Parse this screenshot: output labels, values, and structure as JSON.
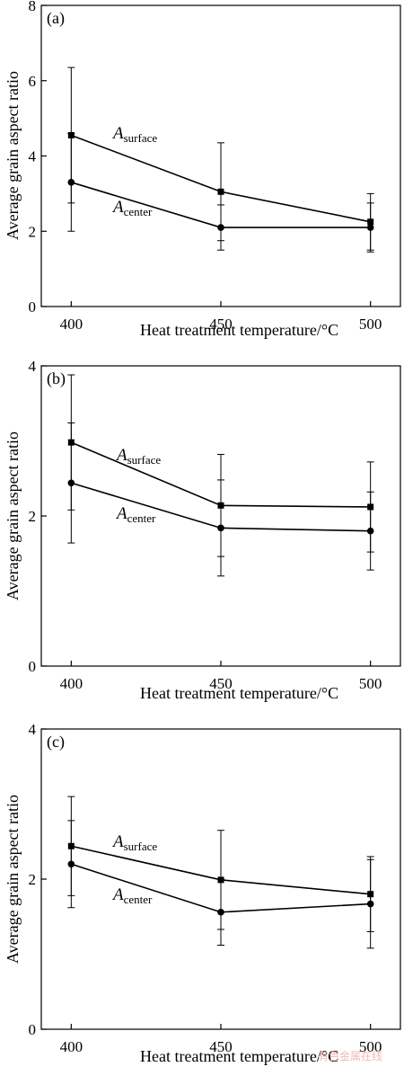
{
  "chart_data": [
    {
      "type": "line",
      "panel_label": "(a)",
      "xlabel": "Heat treatment temperature/°C",
      "ylabel": "Average grain aspect ratio",
      "categories": [
        400,
        450,
        500
      ],
      "xlim": [
        390,
        510
      ],
      "ylim": [
        0,
        8
      ],
      "yticks": [
        0,
        2,
        4,
        6,
        8
      ],
      "series": [
        {
          "name_main": "A",
          "name_sub": "surface",
          "marker": "square",
          "values": [
            4.55,
            3.05,
            2.25
          ],
          "err_low": [
            1.8,
            1.3,
            0.75
          ],
          "err_high": [
            1.8,
            1.3,
            0.75
          ]
        },
        {
          "name_main": "A",
          "name_sub": "center",
          "marker": "circle",
          "values": [
            3.3,
            2.1,
            2.1
          ],
          "err_low": [
            1.3,
            0.6,
            0.65
          ],
          "err_high": [
            1.3,
            0.6,
            0.65
          ]
        }
      ]
    },
    {
      "type": "line",
      "panel_label": "(b)",
      "xlabel": "Heat treatment temperature/°C",
      "ylabel": "Average grain aspect ratio",
      "categories": [
        400,
        450,
        500
      ],
      "xlim": [
        390,
        510
      ],
      "ylim": [
        0,
        4
      ],
      "yticks": [
        0,
        2,
        4
      ],
      "series": [
        {
          "name_main": "A",
          "name_sub": "surface",
          "marker": "square",
          "values": [
            2.98,
            2.14,
            2.12
          ],
          "err_low": [
            0.9,
            0.68,
            0.6
          ],
          "err_high": [
            0.9,
            0.68,
            0.6
          ]
        },
        {
          "name_main": "A",
          "name_sub": "center",
          "marker": "circle",
          "values": [
            2.44,
            1.84,
            1.8
          ],
          "err_low": [
            0.8,
            0.64,
            0.52
          ],
          "err_high": [
            0.8,
            0.64,
            0.52
          ]
        }
      ]
    },
    {
      "type": "line",
      "panel_label": "(c)",
      "xlabel": "Heat treatment temperature/°C",
      "ylabel": "Average grain aspect ratio",
      "categories": [
        400,
        450,
        500
      ],
      "xlim": [
        390,
        510
      ],
      "ylim": [
        0,
        4
      ],
      "yticks": [
        0,
        2,
        4
      ],
      "series": [
        {
          "name_main": "A",
          "name_sub": "surface",
          "marker": "square",
          "values": [
            2.44,
            1.99,
            1.8
          ],
          "err_low": [
            0.66,
            0.66,
            0.5
          ],
          "err_high": [
            0.66,
            0.66,
            0.5
          ]
        },
        {
          "name_main": "A",
          "name_sub": "center",
          "marker": "circle",
          "values": [
            2.2,
            1.56,
            1.67
          ],
          "err_low": [
            0.58,
            0.44,
            0.59
          ],
          "err_high": [
            0.58,
            0.44,
            0.59
          ]
        }
      ]
    }
  ],
  "watermark": "有色金属在线"
}
